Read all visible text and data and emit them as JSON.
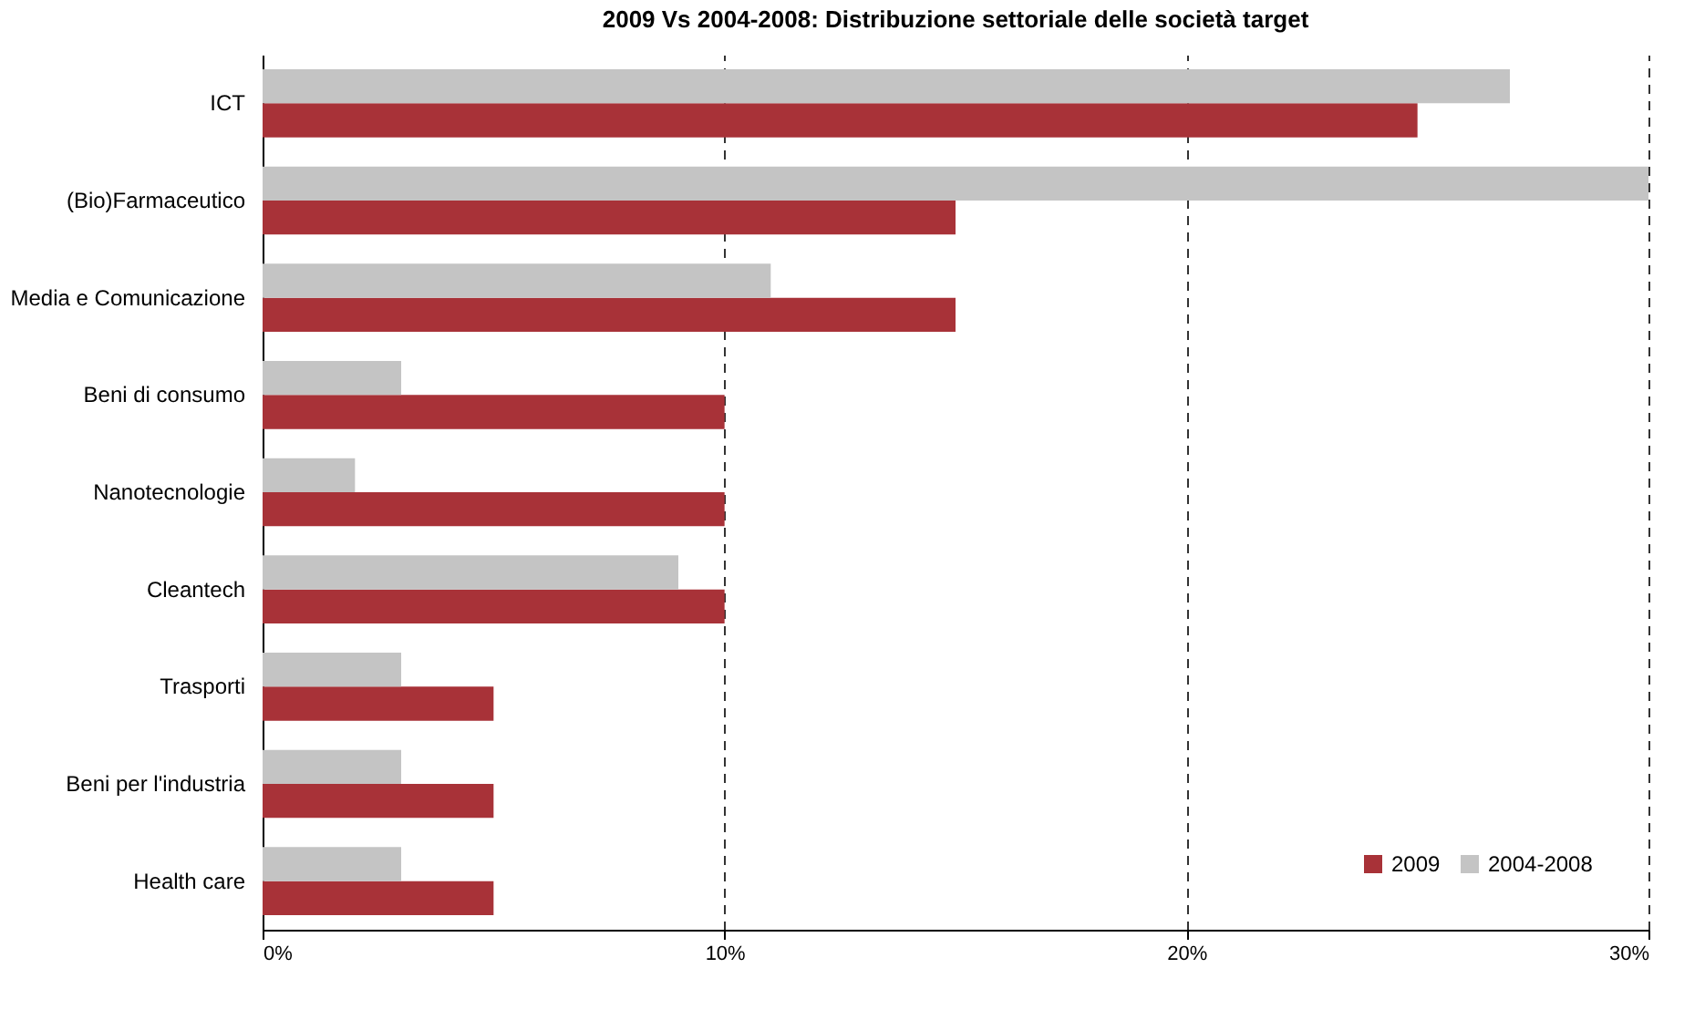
{
  "chart_data": {
    "type": "bar",
    "orientation": "horizontal",
    "title": "2009 Vs 2004-2008: Distribuzione settoriale delle società target",
    "categories": [
      "ICT",
      "(Bio)Farmaceutico",
      "Media e Comunicazione",
      "Beni di consumo",
      "Nanotecnologie",
      "Cleantech",
      "Trasporti",
      "Beni per l'industria",
      "Health care"
    ],
    "series": [
      {
        "name": "2009",
        "color": "#a83238",
        "values": [
          25,
          15,
          15,
          10,
          10,
          10,
          5,
          5,
          5
        ]
      },
      {
        "name": "2004-2008",
        "color": "#c4c4c4",
        "values": [
          27,
          30,
          11,
          3,
          2,
          9,
          3,
          3,
          3
        ]
      }
    ],
    "xlim": [
      0,
      30
    ],
    "xticks": [
      {
        "value": 0,
        "label": "0%"
      },
      {
        "value": 10,
        "label": "10%"
      },
      {
        "value": 20,
        "label": "20%"
      },
      {
        "value": 30,
        "label": "30%"
      }
    ],
    "grid": "x",
    "line_style": "dashed",
    "legend": "bottom right"
  }
}
